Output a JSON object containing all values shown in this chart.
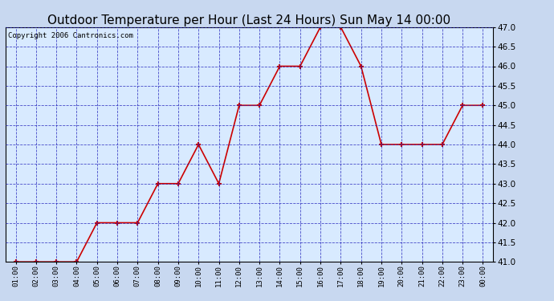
{
  "title": "Outdoor Temperature per Hour (Last 24 Hours) Sun May 14 00:00",
  "copyright": "Copyright 2006 Cantronics.com",
  "hours": [
    "01:00",
    "02:00",
    "03:00",
    "04:00",
    "05:00",
    "06:00",
    "07:00",
    "08:00",
    "09:00",
    "10:00",
    "11:00",
    "12:00",
    "13:00",
    "14:00",
    "15:00",
    "16:00",
    "17:00",
    "18:00",
    "19:00",
    "20:00",
    "21:00",
    "22:00",
    "23:00",
    "00:00"
  ],
  "temps": [
    41.0,
    41.0,
    41.0,
    41.0,
    42.0,
    42.0,
    42.0,
    43.0,
    43.0,
    44.0,
    43.0,
    45.0,
    45.0,
    46.0,
    46.0,
    47.0,
    47.0,
    46.0,
    44.0,
    44.0,
    44.0,
    44.0,
    45.0,
    45.0
  ],
  "ylim_min": 41.0,
  "ylim_max": 47.0,
  "y_ticks": [
    41.0,
    41.5,
    42.0,
    42.5,
    43.0,
    43.5,
    44.0,
    44.5,
    45.0,
    45.5,
    46.0,
    46.5,
    47.0
  ],
  "line_color": "#cc0000",
  "marker_color": "#cc0000",
  "fig_bg_color": "#c8d8f0",
  "plot_bg": "#d8eaff",
  "grid_color": "#2222bb",
  "title_color": "#000000",
  "title_fontsize": 11,
  "copyright_fontsize": 6.5,
  "spine_color": "#000000",
  "tick_label_color": "#000000"
}
